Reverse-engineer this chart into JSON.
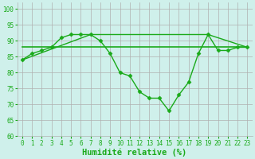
{
  "title": "",
  "xlabel": "Humidité relative (%)",
  "ylabel": "",
  "background_color": "#cff0eb",
  "grid_color": "#b0b0b0",
  "line_color": "#1aaa1a",
  "xlim": [
    -0.5,
    23.5
  ],
  "ylim": [
    60,
    102
  ],
  "yticks": [
    60,
    65,
    70,
    75,
    80,
    85,
    90,
    95,
    100
  ],
  "xticks": [
    0,
    1,
    2,
    3,
    4,
    5,
    6,
    7,
    8,
    9,
    10,
    11,
    12,
    13,
    14,
    15,
    16,
    17,
    18,
    19,
    20,
    21,
    22,
    23
  ],
  "series": [
    {
      "x": [
        0,
        1,
        2,
        3,
        4,
        5,
        6,
        7,
        8,
        9,
        10,
        11,
        12,
        13,
        14,
        15,
        16,
        17,
        18,
        19,
        20,
        21,
        22,
        23
      ],
      "y": [
        84,
        86,
        87,
        88,
        91,
        92,
        92,
        92,
        90,
        86,
        80,
        79,
        74,
        72,
        72,
        68,
        73,
        77,
        86,
        92,
        87,
        87,
        88,
        88
      ],
      "marker": "D",
      "markersize": 2.5,
      "linewidth": 1.0
    },
    {
      "x": [
        0,
        23
      ],
      "y": [
        88,
        88
      ],
      "marker": null,
      "markersize": 0,
      "linewidth": 1.2
    },
    {
      "x": [
        0,
        7,
        19,
        23
      ],
      "y": [
        84,
        92,
        92,
        88
      ],
      "marker": null,
      "markersize": 0,
      "linewidth": 1.0
    }
  ],
  "figsize": [
    3.2,
    2.0
  ],
  "dpi": 100,
  "tick_fontsize": 5.5,
  "xlabel_fontsize": 7.5,
  "tick_color": "#1aaa1a",
  "xlabel_color": "#1aaa1a"
}
